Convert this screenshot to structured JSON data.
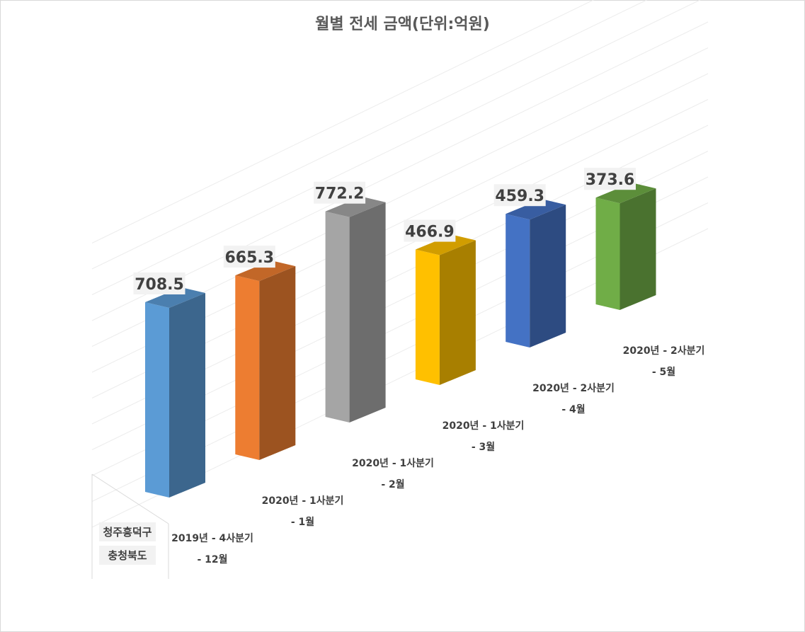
{
  "chart_data": {
    "type": "bar",
    "style": "3d-column",
    "title": "월별 전세 금액(단위:억원)",
    "xlabel": "",
    "ylabel": "",
    "grid": true,
    "legend": "none",
    "row_labels": [
      "청주흥덕구",
      "충청북도"
    ],
    "categories": [
      {
        "line1": "2019년 - 4사분기",
        "line2": "- 12월"
      },
      {
        "line1": "2020년 - 1사분기",
        "line2": "- 1월"
      },
      {
        "line1": "2020년 - 1사분기",
        "line2": "- 2월"
      },
      {
        "line1": "2020년 - 1사분기",
        "line2": "- 3월"
      },
      {
        "line1": "2020년 - 2사분기",
        "line2": "- 4월"
      },
      {
        "line1": "2020년 - 2사분기",
        "line2": "- 5월"
      }
    ],
    "values": [
      708.5,
      665.3,
      772.2,
      466.9,
      459.3,
      373.6
    ],
    "value_labels": [
      "708.5",
      "665.3",
      "772.2",
      "466.9",
      "459.3",
      "373.6"
    ],
    "colors": [
      "#5b9bd5",
      "#ed7d31",
      "#a5a5a5",
      "#ffc000",
      "#4472c4",
      "#70ad47"
    ]
  }
}
